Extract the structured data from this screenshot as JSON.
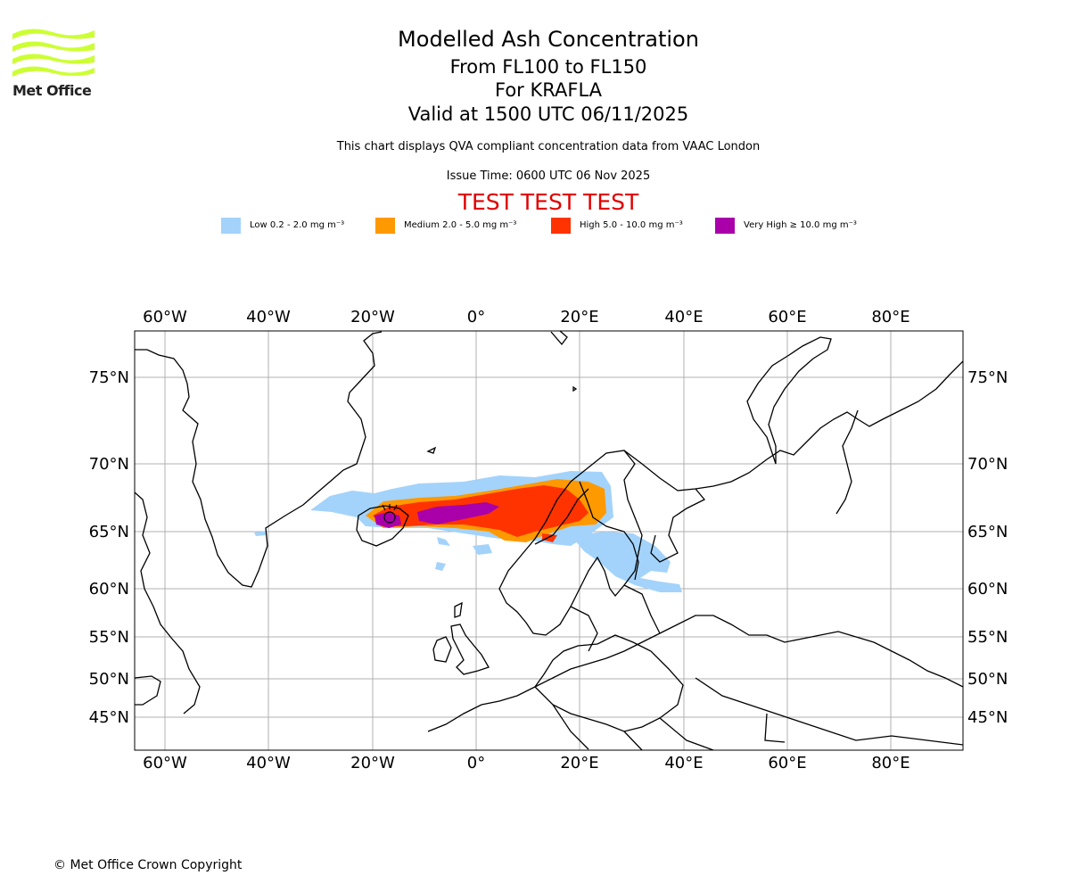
{
  "header": {
    "logo_text": "Met Office",
    "title": "Modelled Ash Concentration",
    "level_range": "From FL100 to FL150",
    "volcano": "For KRAFLA",
    "valid_time": "Valid at 1500 UTC 06/11/2025",
    "compliance_note": "This chart displays QVA compliant concentration data from VAAC London",
    "issue_time": "Issue Time: 0600 UTC 06 Nov 2025",
    "test_banner": "TEST TEST TEST"
  },
  "legend": [
    {
      "label": "Low 0.2 - 2.0 mg m⁻³",
      "color": "#a3d3fb"
    },
    {
      "label": "Medium 2.0 - 5.0 mg m⁻³",
      "color": "#ff9900"
    },
    {
      "label": "High 5.0 - 10.0 mg m⁻³",
      "color": "#ff3300"
    },
    {
      "label": "Very High ≥ 10.0 mg m⁻³",
      "color": "#aa00aa"
    }
  ],
  "map": {
    "longitude_labels": [
      "60°W",
      "40°W",
      "20°W",
      "0°",
      "20°E",
      "40°E",
      "60°E",
      "80°E"
    ],
    "latitude_labels": [
      "75°N",
      "70°N",
      "65°N",
      "60°N",
      "55°N",
      "50°N",
      "45°N"
    ]
  },
  "footer": {
    "copyright": "© Met Office Crown Copyright"
  }
}
